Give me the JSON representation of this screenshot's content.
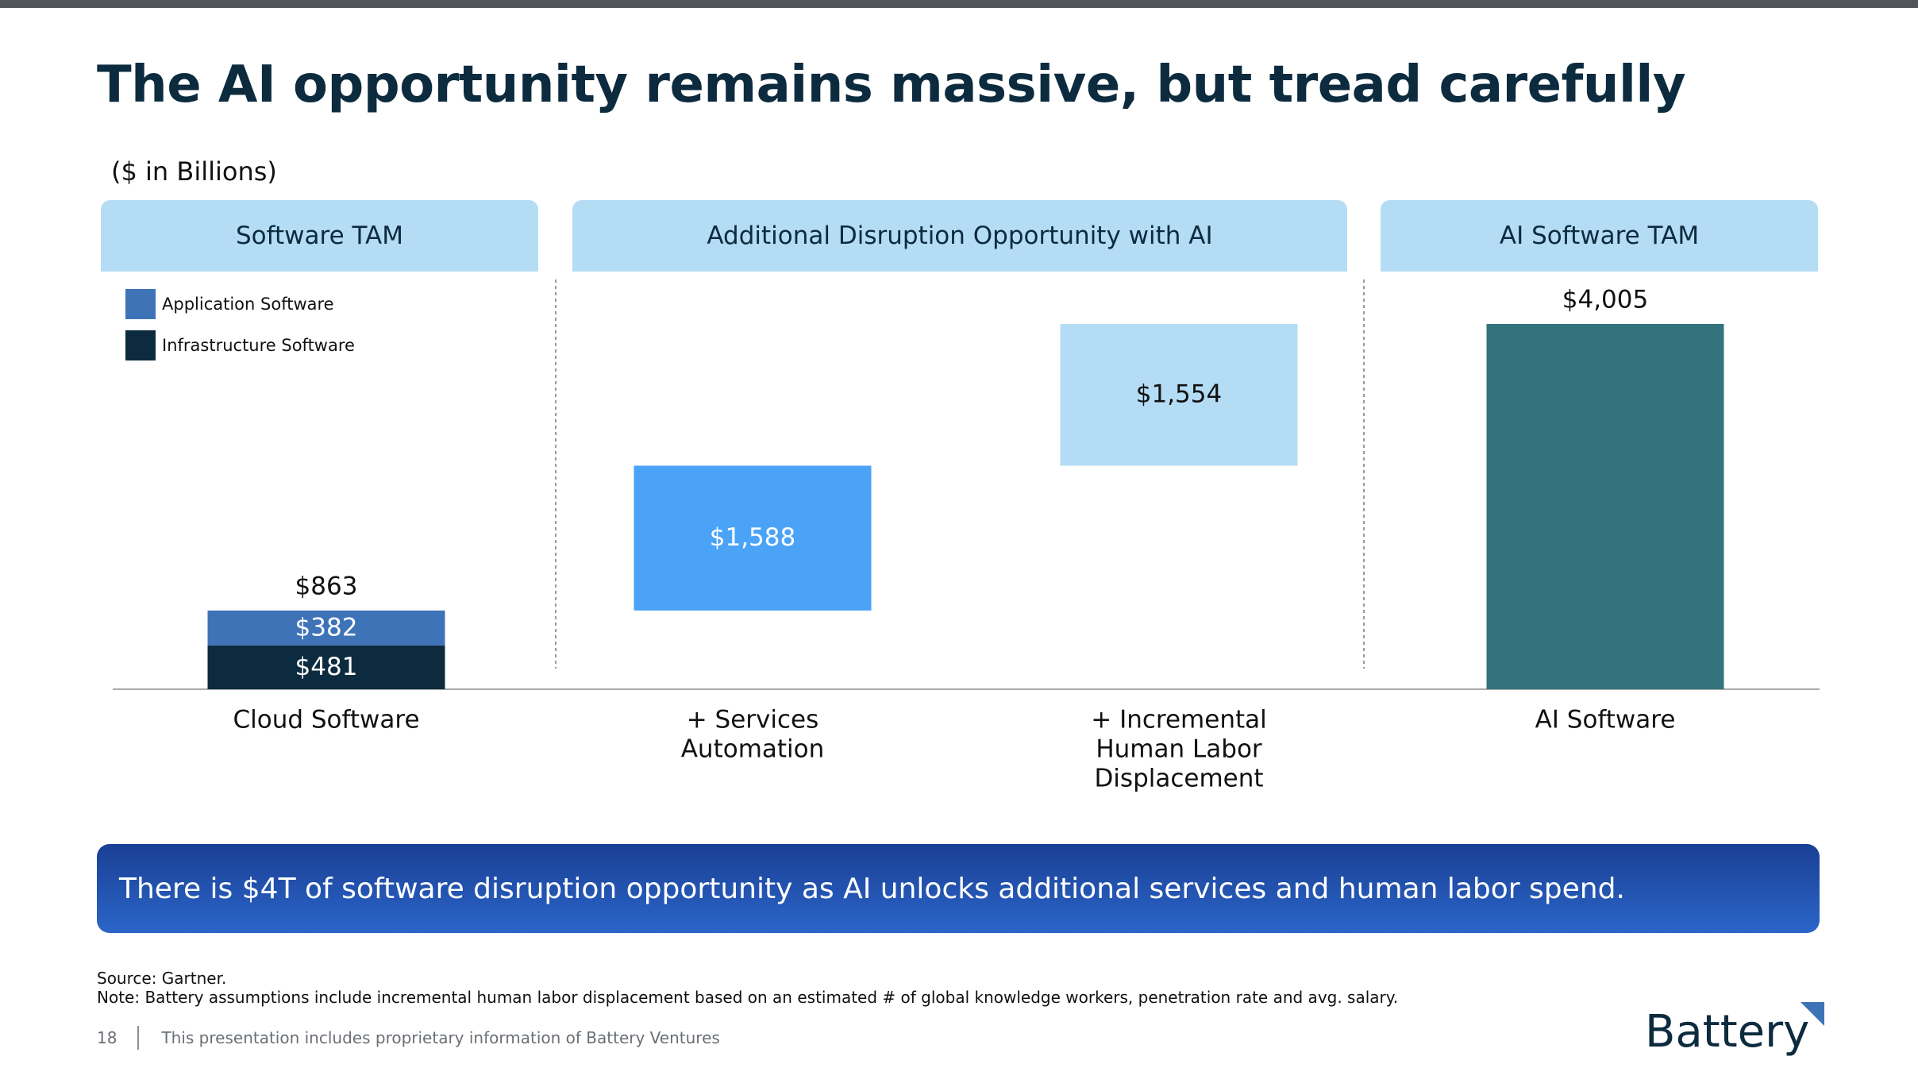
{
  "slide": {
    "title": "The AI opportunity remains massive, but tread carefully",
    "units": "($ in Billions)",
    "callout": "There is $4T of software disruption opportunity as AI unlocks additional services and human labor spend.",
    "source": "Source: Gartner.",
    "note": "Note: Battery assumptions include incremental human labor displacement based on an estimated # of global knowledge workers, penetration rate and avg. salary.",
    "page_number": "18",
    "footer_text": "This presentation includes proprietary information of Battery Ventures",
    "logo_text": "Battery"
  },
  "sections": [
    {
      "label": "Software TAM"
    },
    {
      "label": "Additional Disruption Opportunity with AI"
    },
    {
      "label": "AI Software TAM"
    }
  ],
  "legend": [
    {
      "label": "Application Software",
      "color": "#3f73b8"
    },
    {
      "label": "Infrastructure Software",
      "color": "#0d2b3e"
    }
  ],
  "chart_data": {
    "type": "bar",
    "subtype": "waterfall",
    "categories": [
      "Cloud Software",
      "+ Services Automation",
      "+ Incremental Human Labor Displacement",
      "AI Software"
    ],
    "category_label_lines": [
      [
        "Cloud Software"
      ],
      [
        "+ Services",
        "Automation"
      ],
      [
        "+ Incremental",
        "Human Labor",
        "Displacement"
      ],
      [
        "AI Software"
      ]
    ],
    "series": [
      {
        "name": "Infrastructure Software",
        "values": [
          481,
          null,
          null,
          null
        ],
        "labels": [
          "$481",
          null,
          null,
          null
        ]
      },
      {
        "name": "Application Software",
        "values": [
          382,
          null,
          null,
          null
        ],
        "labels": [
          "$382",
          null,
          null,
          null
        ]
      }
    ],
    "increments": [
      {
        "category": "+ Services Automation",
        "start": 863,
        "value": 1588,
        "label": "$1,588",
        "color": "#4aa3f7",
        "label_color": "#ffffff"
      },
      {
        "category": "+ Incremental Human Labor Displacement",
        "start": 2451,
        "value": 1554,
        "label": "$1,554",
        "color": "#b4dcf5",
        "label_color": "#111111"
      }
    ],
    "totals": [
      {
        "category": "Cloud Software",
        "value": 863,
        "label": "$863"
      },
      {
        "category": "AI Software",
        "value": 4005,
        "label": "$4,005",
        "color": "#33737e"
      }
    ],
    "ylim": [
      0,
      4005
    ],
    "grid": false,
    "legend_position": "top-left"
  }
}
